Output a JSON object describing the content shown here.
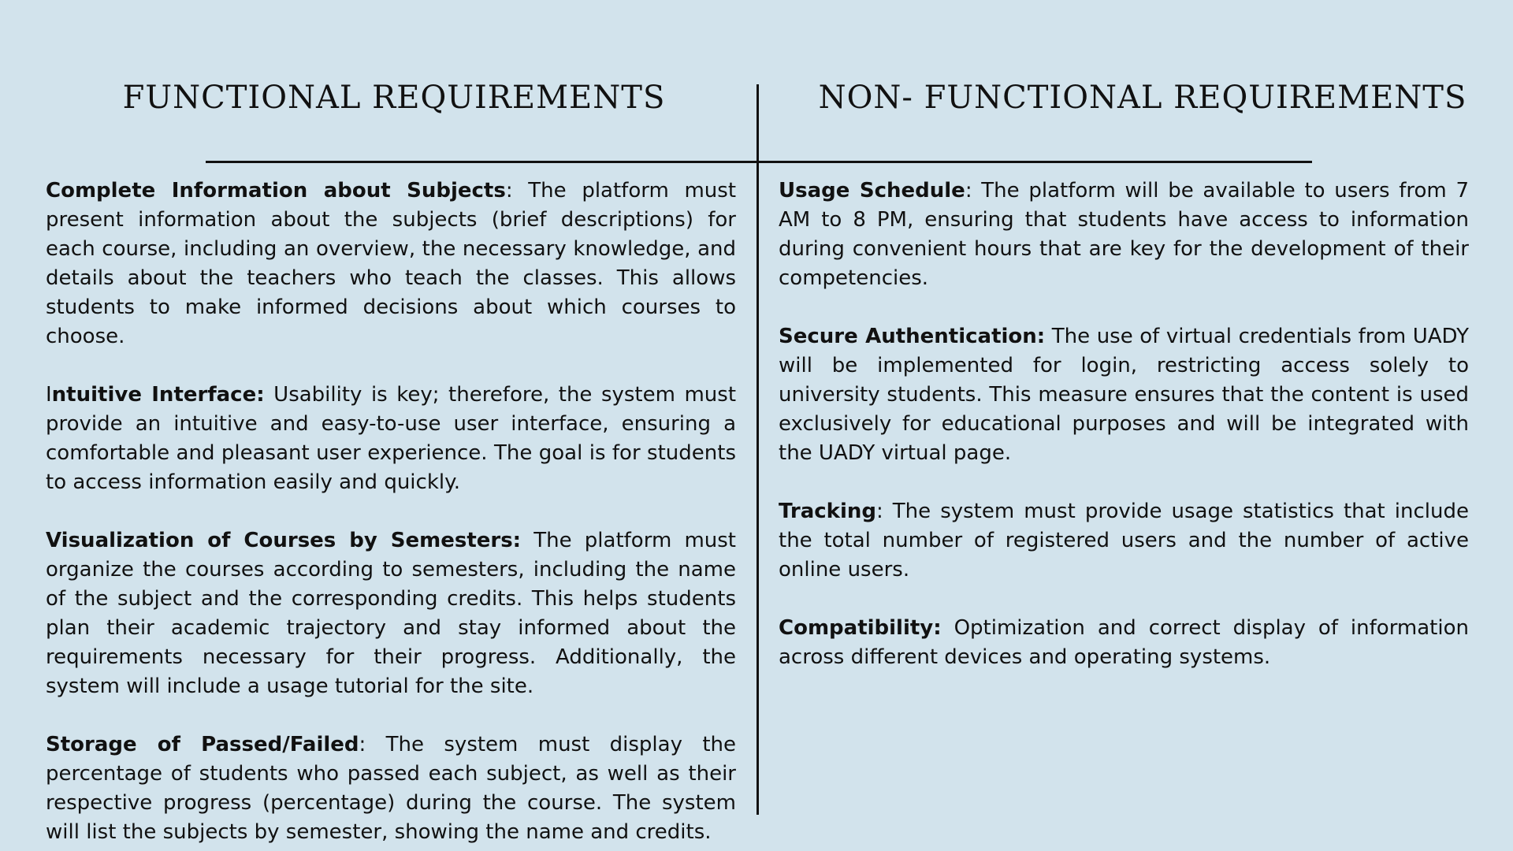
{
  "functional": {
    "title": "FUNCTIONAL REQUIREMENTS",
    "items": [
      {
        "title": "Complete Information about Subjects",
        "sep": ":",
        "text": " The platform must present information about the subjects (brief descriptions) for each course, including an overview, the necessary knowledge, and details about the teachers who teach the classes. This allows students to make informed decisions about which courses to choose."
      },
      {
        "lead": "I",
        "title": "ntuitive Interface:",
        "sep": "",
        "text": " Usability is key; therefore, the system must provide an intuitive and easy-to-use user interface, ensuring a comfortable and pleasant user experience. The goal is for students to access information easily and quickly."
      },
      {
        "title": "Visualization of Courses by Semesters:",
        "sep": "",
        "text": " The platform must organize the courses according to semesters, including the name of the subject and the corresponding credits. This helps students plan their academic trajectory and stay informed about the requirements necessary for their progress. Additionally, the system will include a usage tutorial for the site."
      },
      {
        "title": "Storage of Passed/Failed",
        "sep": ":",
        "text": " The system must display the percentage of students who passed each subject, as well as their respective progress (percentage) during the course. The system will list the subjects by semester, showing the name and credits."
      }
    ]
  },
  "non_functional": {
    "title": "NON- FUNCTIONAL REQUIREMENTS",
    "items": [
      {
        "title": "Usage Schedule",
        "sep": ":",
        "text": " The platform will be available to users from 7 AM to 8 PM, ensuring that students have access to information during convenient hours that are key for the development of their competencies."
      },
      {
        "title": "Secure Authentication:",
        "sep": "",
        "text": " The use of virtual credentials from UADY will be implemented for login, restricting access solely to university students. This measure ensures that the content is used exclusively for educational purposes and will be integrated with the UADY virtual page."
      },
      {
        "title": "Tracking",
        "sep": ":",
        "text": " The system must provide usage statistics that include the total number of registered users and the number of active online users."
      },
      {
        "title": "Compatibility:",
        "sep": "",
        "text": " Optimization and correct display of information across different devices and operating systems."
      }
    ]
  }
}
